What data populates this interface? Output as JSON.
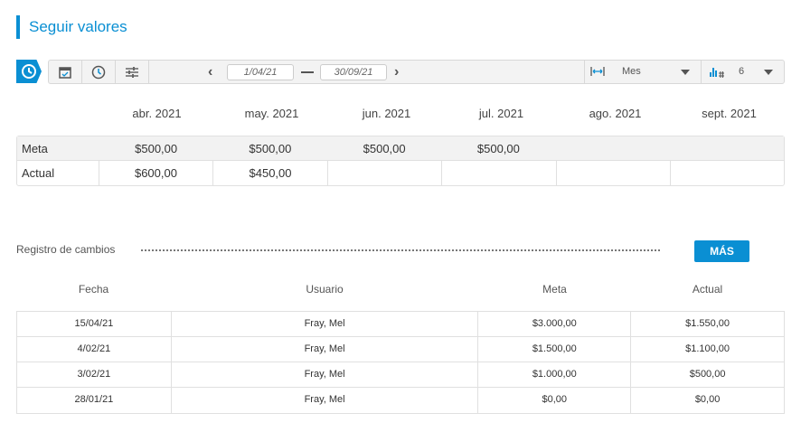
{
  "title": "Seguir valores",
  "toolbar": {
    "start_date": "1/04/21",
    "end_date": "30/09/21",
    "period": "Mes",
    "count": "6",
    "accent": "#0a8fd3"
  },
  "months": [
    "abr. 2021",
    "may. 2021",
    "jun. 2021",
    "jul. 2021",
    "ago. 2021",
    "sept. 2021"
  ],
  "grid": {
    "rows": [
      {
        "label": "Meta",
        "values": [
          "$500,00",
          "$500,00",
          "$500,00",
          "$500,00",
          "",
          ""
        ]
      },
      {
        "label": "Actual",
        "values": [
          "$600,00",
          "$450,00",
          "",
          "",
          "",
          ""
        ]
      }
    ]
  },
  "log": {
    "title": "Registro de cambios",
    "more_label": "MÁS",
    "headers": [
      "Fecha",
      "Usuario",
      "Meta",
      "Actual"
    ],
    "rows": [
      [
        "15/04/21",
        "Fray, Mel",
        "$3.000,00",
        "$1.550,00"
      ],
      [
        "4/02/21",
        "Fray, Mel",
        "$1.500,00",
        "$1.100,00"
      ],
      [
        "3/02/21",
        "Fray, Mel",
        "$1.000,00",
        "$500,00"
      ],
      [
        "28/01/21",
        "Fray, Mel",
        "$0,00",
        "$0,00"
      ]
    ]
  }
}
